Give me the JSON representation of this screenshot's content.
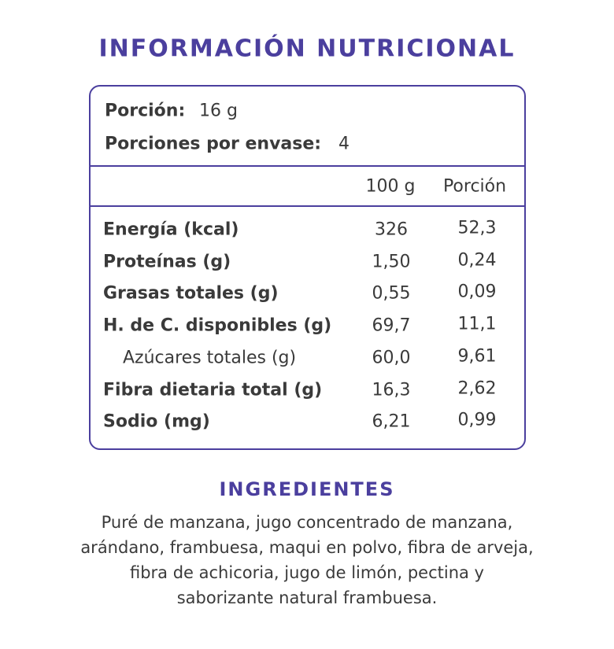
{
  "header": {
    "title": "INFORMACIÓN NUTRICIONAL"
  },
  "serving": {
    "size_label": "Porción:",
    "size": "16 g",
    "count_label": "Porciones por envase:",
    "count": "4"
  },
  "table": {
    "columns": [
      "100 g",
      "Porción"
    ],
    "rows": [
      {
        "label": "Energía (kcal)",
        "per100": "326",
        "portion": "52,3",
        "sub": false
      },
      {
        "label": "Proteínas (g)",
        "per100": "1,50",
        "portion": "0,24",
        "sub": false
      },
      {
        "label": "Grasas totales (g)",
        "per100": "0,55",
        "portion": "0,09",
        "sub": false
      },
      {
        "label": "H. de C. disponibles (g)",
        "per100": "69,7",
        "portion": "11,1",
        "sub": false
      },
      {
        "label": "Azúcares totales (g)",
        "per100": "60,0",
        "portion": "9,61",
        "sub": true
      },
      {
        "label": "Fibra dietaria total (g)",
        "per100": "16,3",
        "portion": "2,62",
        "sub": false
      },
      {
        "label": "Sodio (mg)",
        "per100": "6,21",
        "portion": "0,99",
        "sub": false
      }
    ]
  },
  "ingredients": {
    "title": "INGREDIENTES",
    "lines": [
      "Puré de manzana, jugo concentrado de manzana,",
      "arándano, frambuesa, maqui en polvo, fibra de arveja,",
      "fibra de achicoria, jugo de limón, pectina y",
      "saborizante natural frambuesa."
    ]
  }
}
